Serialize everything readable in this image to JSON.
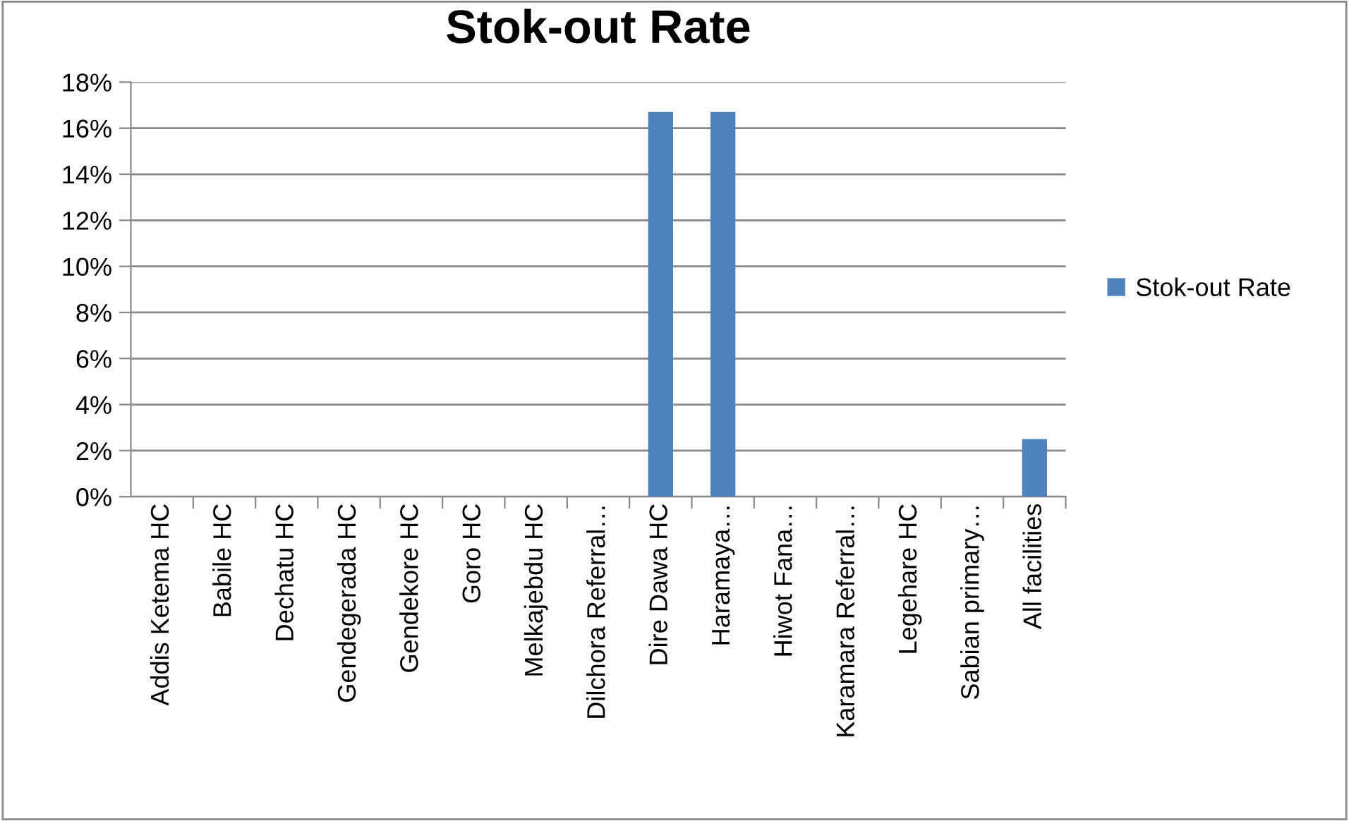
{
  "chart_data": {
    "type": "bar",
    "title": "Stok-out Rate",
    "categories": [
      "Addis Ketema HC",
      "Babile HC",
      "Dechatu HC",
      "Gendegerada HC",
      "Gendekore HC",
      "Goro HC",
      "Melkajebdu HC",
      "Dilchora Referral…",
      "Dire Dawa HC",
      "Haramaya…",
      "Hiwot Fana…",
      "Karamara Referral…",
      "Legehare HC",
      "Sabian primary…",
      "All facilities"
    ],
    "series": [
      {
        "name": "Stok-out Rate",
        "color": "#4f81bd",
        "values": [
          0,
          0,
          0,
          0,
          0,
          0,
          0,
          0,
          16.7,
          16.7,
          0,
          0,
          0,
          0,
          2.5
        ]
      }
    ],
    "ylim": [
      0,
      18
    ],
    "yticks": [
      {
        "value": 0,
        "label": "0%"
      },
      {
        "value": 2,
        "label": "2%"
      },
      {
        "value": 4,
        "label": "4%"
      },
      {
        "value": 6,
        "label": "6%"
      },
      {
        "value": 8,
        "label": "8%"
      },
      {
        "value": 10,
        "label": "10%"
      },
      {
        "value": 12,
        "label": "12%"
      },
      {
        "value": 14,
        "label": "14%"
      },
      {
        "value": 16,
        "label": "16%"
      },
      {
        "value": 18,
        "label": "18%"
      }
    ],
    "grid": "y",
    "legend": "right"
  }
}
